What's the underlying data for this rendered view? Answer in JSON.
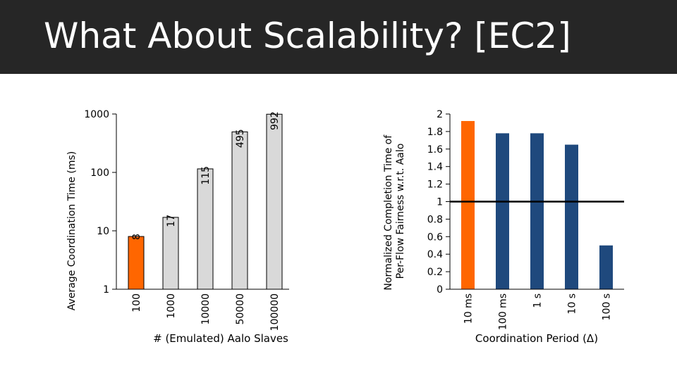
{
  "slide": {
    "title": "What About Scalability? [EC2]",
    "title_bar_color": "#262626"
  },
  "chart_data": [
    {
      "type": "bar",
      "scale": "log",
      "ylabel": "Average Coordination Time (ms)",
      "xlabel": "# (Emulated) Aalo Slaves",
      "ylim": [
        1,
        1000
      ],
      "yticks": [
        "1",
        "10",
        "100",
        "1000"
      ],
      "categories": [
        "100",
        "1000",
        "10000",
        "50000",
        "100000"
      ],
      "values": [
        8,
        17,
        115,
        495,
        992
      ],
      "value_labels": [
        "8",
        "17",
        "115",
        "495",
        "992"
      ],
      "colors": [
        "#ff6600",
        "#d9d9d9",
        "#d9d9d9",
        "#d9d9d9",
        "#d9d9d9"
      ],
      "grid": false
    },
    {
      "type": "bar",
      "scale": "linear",
      "ylabel_lines": [
        "Normalized Completion  Time of",
        "Per-Flow Fairness w.r.t. Aalo"
      ],
      "xlabel": "Coordination Period (Δ)",
      "ylim": [
        0,
        2
      ],
      "yticks": [
        "0",
        "0.2",
        "0.4",
        "0.6",
        "0.8",
        "1",
        "1.2",
        "1.4",
        "1.6",
        "1.8",
        "2"
      ],
      "categories": [
        "10 ms",
        "100 ms",
        "1 s",
        "10 s",
        "100 s"
      ],
      "values": [
        1.92,
        1.78,
        1.78,
        1.65,
        0.5
      ],
      "colors": [
        "#ff6600",
        "#1f497d",
        "#1f497d",
        "#1f497d",
        "#1f497d"
      ],
      "reference_line": 1,
      "grid": false
    }
  ]
}
